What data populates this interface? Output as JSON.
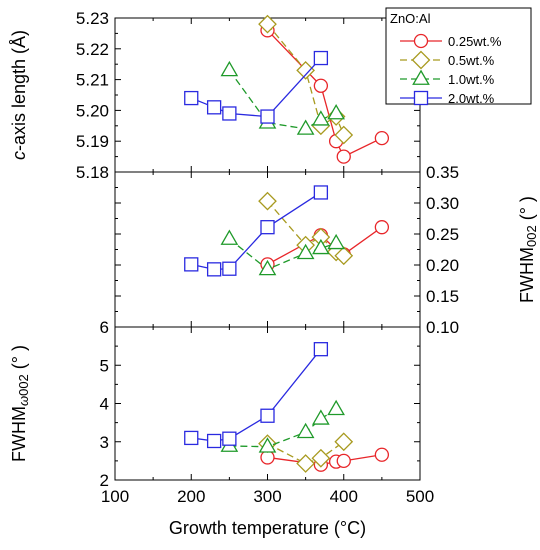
{
  "chart_data": {
    "type": "scatter",
    "xlabel": "Growth temperature (°C)",
    "xlim": [
      100,
      500
    ],
    "xticks": [
      "100",
      "200",
      "300",
      "400",
      "500"
    ],
    "legend": {
      "title": "ZnO:Al",
      "placement": "top-right",
      "entries": [
        "0.25wt.%",
        "0.5wt.%",
        "1.0wt.%",
        "2.0wt.%"
      ]
    },
    "series_styles": [
      {
        "name": "0.25wt.%",
        "color": "#e8262a",
        "marker": "circle",
        "line": "solid"
      },
      {
        "name": "0.5wt.%",
        "color": "#a89a1f",
        "marker": "diamond",
        "line": "dashed"
      },
      {
        "name": "1.0wt.%",
        "color": "#1f9a2a",
        "marker": "triangle",
        "line": "dashed"
      },
      {
        "name": "2.0wt.%",
        "color": "#2a2ae0",
        "marker": "square",
        "line": "solid"
      }
    ],
    "panels": [
      {
        "ylabel_pre": "c",
        "ylabel_post": "-axis length (Å)",
        "ylabel_side": "left",
        "ylim": [
          5.18,
          5.23
        ],
        "yticks": [
          "5.18",
          "5.19",
          "5.20",
          "5.21",
          "5.22",
          "5.23"
        ],
        "series": [
          {
            "name": "0.25wt.%",
            "x": [
              300,
              370,
              390,
              400,
              450
            ],
            "y": [
              5.226,
              5.208,
              5.19,
              5.185,
              5.191
            ]
          },
          {
            "name": "0.5wt.%",
            "x": [
              300,
              350,
              370,
              390,
              400
            ],
            "y": [
              5.228,
              5.213,
              5.195,
              5.198,
              5.192
            ]
          },
          {
            "name": "1.0wt.%",
            "x": [
              250,
              300,
              350,
              370,
              390
            ],
            "y": [
              5.213,
              5.196,
              5.194,
              5.197,
              5.199
            ]
          },
          {
            "name": "2.0wt.%",
            "x": [
              200,
              230,
              250,
              300,
              370
            ],
            "y": [
              5.204,
              5.201,
              5.199,
              5.198,
              5.217
            ]
          }
        ]
      },
      {
        "ylabel_main": "FWHM",
        "ylabel_sub": "002",
        "ylabel_unit": " (° )",
        "ylabel_side": "right",
        "ylim": [
          0.1,
          0.35
        ],
        "yticks": [
          "0.10",
          "0.15",
          "0.20",
          "0.25",
          "0.30",
          "0.35"
        ],
        "series": [
          {
            "name": "0.25wt.%",
            "x": [
              300,
              370,
              390,
              400,
              450
            ],
            "y": [
              0.201,
              0.248,
              0.225,
              0.217,
              0.261
            ]
          },
          {
            "name": "0.5wt.%",
            "x": [
              300,
              350,
              370,
              390,
              400
            ],
            "y": [
              0.303,
              0.232,
              0.245,
              0.221,
              0.215
            ]
          },
          {
            "name": "1.0wt.%",
            "x": [
              250,
              300,
              350,
              370,
              390
            ],
            "y": [
              0.242,
              0.193,
              0.219,
              0.227,
              0.235
            ]
          },
          {
            "name": "2.0wt.%",
            "x": [
              200,
              230,
              250,
              300,
              370
            ],
            "y": [
              0.201,
              0.193,
              0.194,
              0.261,
              0.317
            ]
          }
        ]
      },
      {
        "ylabel_main": "FWHM",
        "ylabel_sub": "ω002",
        "ylabel_unit": " (° )",
        "ylabel_side": "left",
        "ylim": [
          2,
          6
        ],
        "yticks": [
          "2",
          "3",
          "4",
          "5",
          "6"
        ],
        "series": [
          {
            "name": "0.25wt.%",
            "x": [
              300,
              370,
              390,
              400,
              450
            ],
            "y": [
              2.59,
              2.4,
              2.48,
              2.5,
              2.66
            ]
          },
          {
            "name": "0.5wt.%",
            "x": [
              300,
              350,
              370,
              400
            ],
            "y": [
              2.95,
              2.43,
              2.57,
              3.0
            ]
          },
          {
            "name": "1.0wt.%",
            "x": [
              250,
              300,
              350,
              370,
              390
            ],
            "y": [
              2.89,
              2.87,
              3.25,
              3.6,
              3.85
            ]
          },
          {
            "name": "2.0wt.%",
            "x": [
              200,
              230,
              250,
              300,
              370
            ],
            "y": [
              3.1,
              3.02,
              3.08,
              3.68,
              5.42
            ]
          }
        ]
      }
    ]
  }
}
